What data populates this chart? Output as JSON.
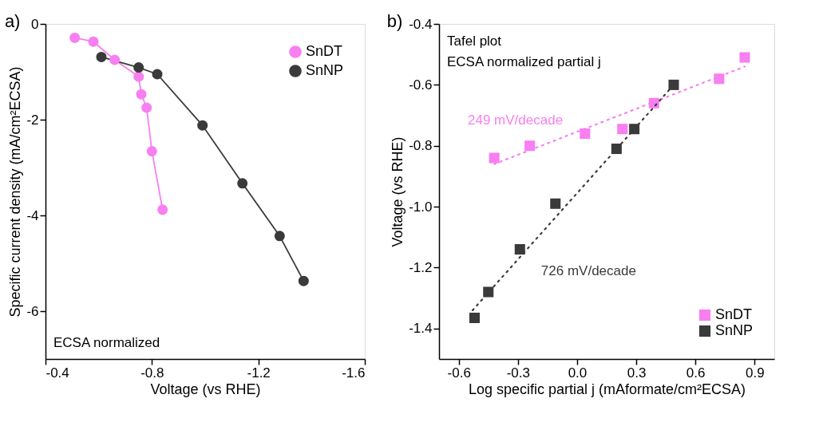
{
  "chart_data": [
    {
      "type": "line",
      "title": "a)",
      "xlabel": "Voltage (vs RHE)",
      "ylabel": "Specific current density (mA/cm²ECSA)",
      "marker": "circle",
      "legend": "top right",
      "grid": false,
      "xlim": [
        -0.4,
        -1.6
      ],
      "xticks": [
        -0.4,
        -0.8,
        -1.2,
        -1.6
      ],
      "ylim": [
        -7,
        0
      ],
      "yticks": [
        0,
        -2,
        -4,
        -6
      ],
      "annotations": [
        "ECSA normalized"
      ],
      "series": [
        {
          "name": "SnDT",
          "color": "#f77ff0",
          "x": [
            -0.51,
            -0.58,
            -0.66,
            -0.75,
            -0.76,
            -0.78,
            -0.8,
            -0.84
          ],
          "values": [
            -0.29,
            -0.37,
            -0.75,
            -1.1,
            -1.47,
            -1.75,
            -2.66,
            -3.88
          ]
        },
        {
          "name": "SnNP",
          "color": "#3a3a3a",
          "x": [
            -0.61,
            -0.75,
            -0.82,
            -0.99,
            -1.14,
            -1.28,
            -1.37
          ],
          "values": [
            -0.69,
            -0.91,
            -1.05,
            -2.12,
            -3.33,
            -4.43,
            -5.37
          ]
        }
      ]
    },
    {
      "type": "scatter",
      "title": "b)",
      "xlabel": "Log specific partial j (mAformate/cm²ECSA)",
      "ylabel": "Voltage (vs RHE)",
      "marker": "square",
      "legend": "bottom right",
      "grid": false,
      "xlim": [
        -0.7,
        1.0
      ],
      "xticks": [
        -0.6,
        -0.3,
        {
          "value": 0,
          "label": "0.0"
        },
        0.3,
        0.6,
        0.9
      ],
      "ylim": [
        -1.5,
        -0.4
      ],
      "yticks": [
        -0.4,
        -0.6,
        -0.8,
        {
          "value": -1,
          "label": "-1.0"
        },
        -1.2,
        -1.4
      ],
      "annotations": [
        "Tafel plot",
        "ECSA normalized partial j",
        "249 mV/decade",
        "726 mV/decade"
      ],
      "series": [
        {
          "name": "SnDT",
          "color": "#f77ff0",
          "x": [
            -0.42,
            -0.24,
            0.04,
            0.23,
            0.39,
            0.72,
            0.85
          ],
          "values": [
            -0.84,
            -0.8,
            -0.76,
            -0.745,
            -0.66,
            -0.58,
            -0.51
          ]
        },
        {
          "name": "SnNP",
          "color": "#3a3a3a",
          "x": [
            -0.52,
            -0.45,
            -0.29,
            -0.11,
            0.2,
            0.29,
            0.49
          ],
          "values": [
            -1.365,
            -1.28,
            -1.14,
            -0.99,
            -0.81,
            -0.745,
            -0.6
          ]
        },
        {
          "type": "line",
          "marker": "none",
          "color": "#f77ff0",
          "line_style": "dotted",
          "x": [
            -0.42,
            0.85
          ],
          "values": [
            -0.86,
            -0.54
          ]
        },
        {
          "type": "line",
          "marker": "none",
          "color": "#3a3a3a",
          "line_style": "dotted",
          "x": [
            -0.53,
            0.49
          ],
          "values": [
            -1.34,
            -0.6
          ]
        }
      ]
    }
  ]
}
